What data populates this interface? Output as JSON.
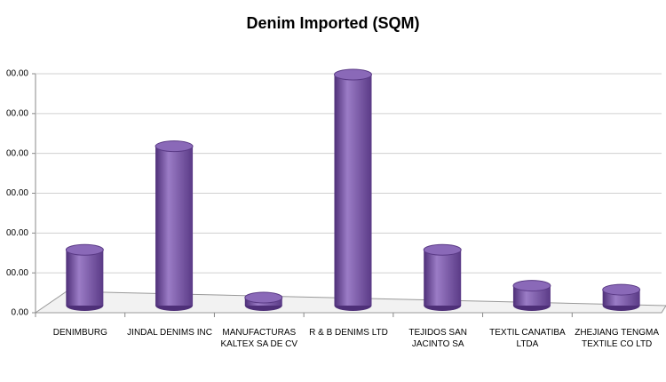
{
  "chart_data": {
    "type": "bar",
    "title": "Denim Imported (SQM)",
    "categories": [
      "DENIMBURG",
      "JINDAL DENIMS INC",
      "MANUFACTURAS KALTEX SA DE CV",
      "R & B DENIMS LTD",
      "TEJIDOS SAN JACINTO SA",
      "TEXTIL CANATIBA LTDA",
      "ZHEJIANG TENGMA TEXTILE CO LTD"
    ],
    "values": [
      1.4,
      4.0,
      0.2,
      5.8,
      1.4,
      0.5,
      0.4
    ],
    "color": "#7d58a8",
    "ylim": [
      0,
      6
    ],
    "yticks": [
      {
        "value": 0,
        "label": "0.00"
      },
      {
        "value": 1,
        "label": "00.00"
      },
      {
        "value": 2,
        "label": "00.00"
      },
      {
        "value": 3,
        "label": "00.00"
      },
      {
        "value": 4,
        "label": "00.00"
      },
      {
        "value": 5,
        "label": "00.00"
      },
      {
        "value": 6,
        "label": "00.00"
      }
    ],
    "grid": true
  }
}
